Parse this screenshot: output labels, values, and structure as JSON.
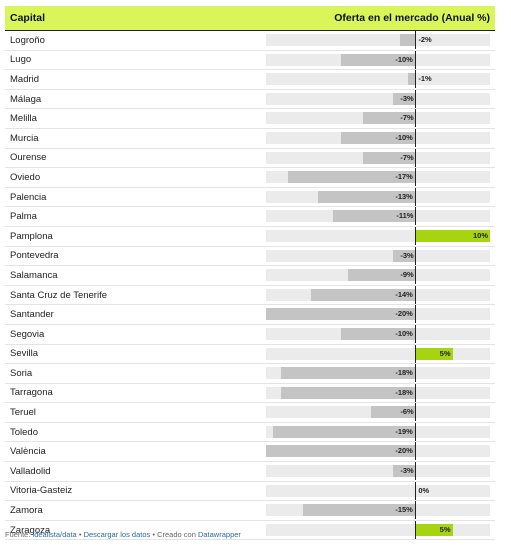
{
  "header": {
    "col_name": "Capital",
    "col_value": "Oferta en el mercado (Anual %)"
  },
  "chart_data": {
    "type": "bar",
    "orientation": "horizontal",
    "value_suffix": "%",
    "xlim": [
      -20,
      10
    ],
    "colors": {
      "negative": "#c4c4c4",
      "positive": "#a6d40f",
      "track": "#ebebeb",
      "header": "#d9f55a"
    },
    "rows": [
      {
        "name": "Logroño",
        "value": -2,
        "label": "-2%"
      },
      {
        "name": "Lugo",
        "value": -10,
        "label": "-10%"
      },
      {
        "name": "Madrid",
        "value": -1,
        "label": "-1%"
      },
      {
        "name": "Málaga",
        "value": -3,
        "label": "-3%"
      },
      {
        "name": "Melilla",
        "value": -7,
        "label": "-7%"
      },
      {
        "name": "Murcia",
        "value": -10,
        "label": "-10%"
      },
      {
        "name": "Ourense",
        "value": -7,
        "label": "-7%"
      },
      {
        "name": "Oviedo",
        "value": -17,
        "label": "-17%"
      },
      {
        "name": "Palencia",
        "value": -13,
        "label": "-13%"
      },
      {
        "name": "Palma",
        "value": -11,
        "label": "-11%"
      },
      {
        "name": "Pamplona",
        "value": 10,
        "label": "10%"
      },
      {
        "name": "Pontevedra",
        "value": -3,
        "label": "-3%"
      },
      {
        "name": "Salamanca",
        "value": -9,
        "label": "-9%"
      },
      {
        "name": "Santa Cruz de Tenerife",
        "value": -14,
        "label": "-14%"
      },
      {
        "name": "Santander",
        "value": -20,
        "label": "-20%"
      },
      {
        "name": "Segovia",
        "value": -10,
        "label": "-10%"
      },
      {
        "name": "Sevilla",
        "value": 5,
        "label": "5%"
      },
      {
        "name": "Soria",
        "value": -18,
        "label": "-18%"
      },
      {
        "name": "Tarragona",
        "value": -18,
        "label": "-18%"
      },
      {
        "name": "Teruel",
        "value": -6,
        "label": "-6%"
      },
      {
        "name": "Toledo",
        "value": -19,
        "label": "-19%"
      },
      {
        "name": "València",
        "value": -20,
        "label": "-20%"
      },
      {
        "name": "Valladolid",
        "value": -3,
        "label": "-3%"
      },
      {
        "name": "Vitoria-Gasteiz",
        "value": 0,
        "label": "0%"
      },
      {
        "name": "Zamora",
        "value": -15,
        "label": "-15%"
      },
      {
        "name": "Zaragoza",
        "value": 5,
        "label": "5%"
      }
    ]
  },
  "footer": {
    "source_label": "Fuente:",
    "source_link": "idealista/data",
    "sep1": "•",
    "download_link": "Descargar los datos",
    "sep2": "•",
    "created_text": "Creado con",
    "tool_link": "Datawrapper"
  }
}
